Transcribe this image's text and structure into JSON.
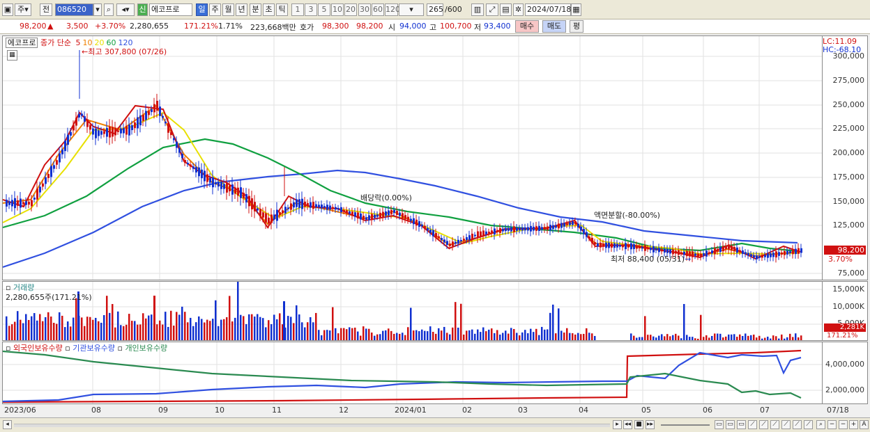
{
  "toolbar": {
    "period_label": "주",
    "prev_label": "전",
    "stock_code": "086520",
    "market_badge": "신",
    "stock_name": "에코프로",
    "period_tabs": [
      "일",
      "주",
      "월",
      "년",
      "분",
      "초",
      "틱"
    ],
    "active_period": "일",
    "minute_options": [
      "1",
      "3",
      "5",
      "10",
      "20",
      "30",
      "60",
      "120"
    ],
    "count_current": "265",
    "count_total": "/600",
    "date": "2024/07/18"
  },
  "quote": {
    "price": "98,200",
    "change": "3,500",
    "change_pct": "+3.70%",
    "volume": "2,280,655",
    "volume_ratio": "171.21%",
    "turnover": "1.71%",
    "amount": "223,668백만",
    "ask_label": "호가",
    "ask": "98,300",
    "bid": "98,200",
    "open_label": "시",
    "open": "94,000",
    "high_label": "고",
    "high": "100,700",
    "low_label": "저",
    "low": "93,400",
    "buy_label": "매수",
    "sell_label": "매도",
    "eval_label": "평"
  },
  "price_panel": {
    "name_tag": "에코프로",
    "ma_legend_prefix": "종가 단순",
    "ma_periods": [
      "5",
      "10",
      "20",
      "60",
      "120"
    ],
    "ma_colors": [
      "#d01010",
      "#f08000",
      "#e8e000",
      "#10a040",
      "#3050e0"
    ],
    "max_note": "최고 307,800 (07/26)",
    "min_note": "최저 88,400 (05/31)",
    "dividend_note": "배당락(0.00%)",
    "split_note": "액면분할(-80.00%)",
    "lc": "LC:11.09",
    "hc": "HC:-68.10",
    "y_ticks": [
      "300,000",
      "275,000",
      "250,000",
      "225,000",
      "200,000",
      "175,000",
      "150,000",
      "125,000",
      "75,000"
    ],
    "current_price_tag": "98,200",
    "current_pct_tag": "3.70%"
  },
  "volume_panel": {
    "title": "거래량",
    "value": "2,280,655주(171.21%)",
    "y_ticks": [
      "15,000K",
      "10,000K",
      "5,000K"
    ],
    "current_tag": "2,281K",
    "current_pct": "171.21%"
  },
  "holding_panel": {
    "legend": [
      "외국인보유수량",
      "기관보유수량",
      "개인보유수량"
    ],
    "legend_colors": [
      "#d01010",
      "#3050e0",
      "#2a8a50"
    ],
    "y_ticks": [
      "4,000,000",
      "2,000,000"
    ]
  },
  "x_axis": [
    "2023/06",
    "08",
    "09",
    "10",
    "11",
    "12",
    "2024/01",
    "02",
    "03",
    "04",
    "05",
    "06",
    "07",
    "07/18"
  ],
  "colors": {
    "up": "#d01010",
    "down": "#1030d0",
    "bg": "#ffffff",
    "grid": "#e2e2e2"
  }
}
